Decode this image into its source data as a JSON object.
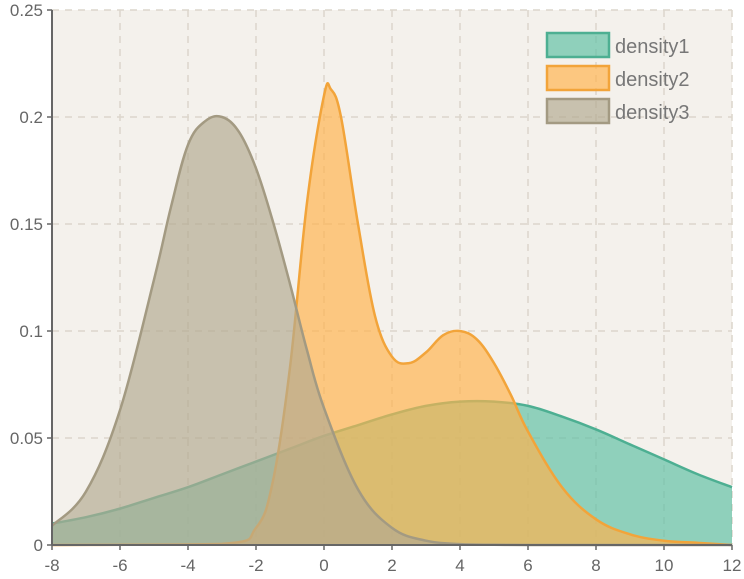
{
  "chart_data": {
    "type": "area",
    "xlim": [
      -8,
      12
    ],
    "ylim": [
      0,
      0.25
    ],
    "x_ticks": [
      -8,
      -6,
      -4,
      -2,
      0,
      2,
      4,
      6,
      8,
      10,
      12
    ],
    "y_ticks": [
      0,
      0.05,
      0.1,
      0.15,
      0.2,
      0.25
    ],
    "x_tick_labels": [
      "-8",
      "-6",
      "-4",
      "-2",
      "0",
      "2",
      "4",
      "6",
      "8",
      "10",
      "12"
    ],
    "y_tick_labels": [
      "0",
      "0.05",
      "0.1",
      "0.15",
      "0.2",
      "0.25"
    ],
    "grid": true,
    "legend_position": "top-right",
    "background": "#f4f1ec",
    "series": [
      {
        "name": "density1",
        "fill": "#5fbfa3",
        "stroke": "#4daf92",
        "x": [
          -8,
          -7,
          -6,
          -5,
          -4,
          -3,
          -2,
          -1,
          0,
          1,
          2,
          3,
          4,
          5,
          6,
          7,
          8,
          9,
          10,
          11,
          12
        ],
        "y": [
          0.01,
          0.013,
          0.017,
          0.022,
          0.027,
          0.033,
          0.039,
          0.045,
          0.051,
          0.056,
          0.061,
          0.065,
          0.067,
          0.067,
          0.065,
          0.06,
          0.054,
          0.047,
          0.04,
          0.033,
          0.027
        ]
      },
      {
        "name": "density2",
        "fill": "#ffb24d",
        "stroke": "#f2a43a",
        "x": [
          -8,
          -3,
          -2,
          -1.5,
          -1,
          -0.5,
          0,
          0.2,
          0.5,
          1,
          1.5,
          2,
          2.5,
          3,
          3.5,
          4,
          4.5,
          5,
          5.5,
          6,
          7,
          8,
          9,
          10,
          11,
          12
        ],
        "y": [
          0,
          0.0005,
          0.008,
          0.03,
          0.083,
          0.16,
          0.21,
          0.213,
          0.2,
          0.15,
          0.107,
          0.088,
          0.085,
          0.09,
          0.098,
          0.1,
          0.096,
          0.085,
          0.07,
          0.053,
          0.027,
          0.012,
          0.005,
          0.002,
          0.001,
          0
        ]
      },
      {
        "name": "density3",
        "fill": "#b3aa91",
        "stroke": "#a39a82",
        "x": [
          -8,
          -7,
          -6,
          -5,
          -4.5,
          -4,
          -3.5,
          -3,
          -2.5,
          -2,
          -1.5,
          -1,
          -0.5,
          0,
          1,
          2,
          3,
          4,
          5,
          6,
          8,
          10,
          12
        ],
        "y": [
          0.009,
          0.025,
          0.063,
          0.124,
          0.158,
          0.187,
          0.198,
          0.2,
          0.193,
          0.176,
          0.151,
          0.122,
          0.091,
          0.064,
          0.026,
          0.008,
          0.002,
          0.0004,
          0.0001,
          0,
          0,
          0,
          0
        ]
      }
    ]
  }
}
